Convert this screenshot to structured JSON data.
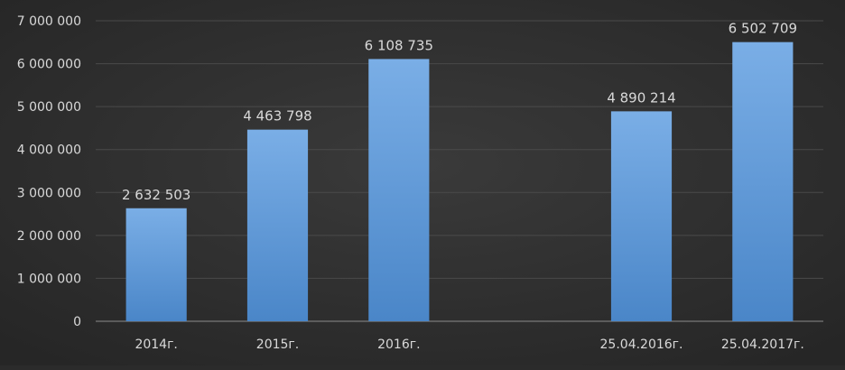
{
  "chart_data": {
    "type": "bar",
    "categories": [
      "2014г.",
      "2015г.",
      "2016г.",
      "",
      "25.04.2016г.",
      "25.04.2017г."
    ],
    "values": [
      2632503,
      4463798,
      6108735,
      null,
      4890214,
      6502709
    ],
    "data_labels": [
      "2 632 503",
      "4 463 798",
      "6 108 735",
      "",
      "4 890 214",
      "6 502 709"
    ],
    "y_ticks": [
      "0",
      "1 000 000",
      "2 000 000",
      "3 000 000",
      "4 000 000",
      "5 000 000",
      "6 000 000",
      "7 000 000"
    ],
    "ylim": [
      0,
      7000000
    ],
    "title": "",
    "xlabel": "",
    "ylabel": "",
    "grid": true,
    "legend": "none",
    "colors": {
      "background": "#2b2b2b",
      "bar_top": "#7aaee6",
      "bar_bottom": "#4a86c8",
      "grid": "#4a4a4a",
      "axis": "#8c8c8c",
      "text": "#d9d9d9"
    }
  }
}
